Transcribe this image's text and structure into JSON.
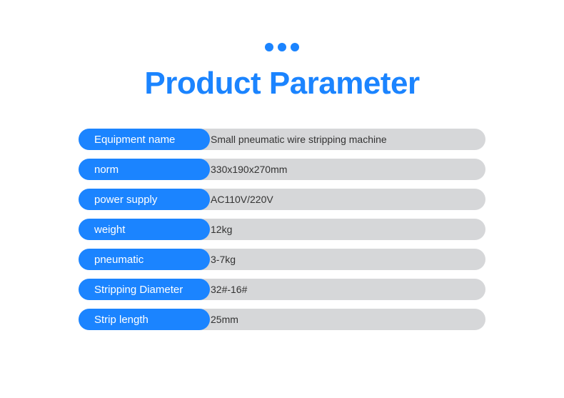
{
  "accent_color": "#1b84ff",
  "value_bg_color": "#d6d7d9",
  "title": {
    "text": "Product Parameter",
    "color": "#1b84ff",
    "fontsize": 44
  },
  "dots": {
    "count": 3,
    "color": "#1b84ff"
  },
  "rows": [
    {
      "label": "Equipment name",
      "value": "Small pneumatic wire stripping machine"
    },
    {
      "label": "norm",
      "value": "330x190x270mm"
    },
    {
      "label": "power supply",
      "value": "AC110V/220V"
    },
    {
      "label": "weight",
      "value": "12kg"
    },
    {
      "label": "pneumatic",
      "value": "3-7kg"
    },
    {
      "label": "Stripping Diameter",
      "value": "32#-16#"
    },
    {
      "label": "Strip length",
      "value": "25mm"
    }
  ]
}
